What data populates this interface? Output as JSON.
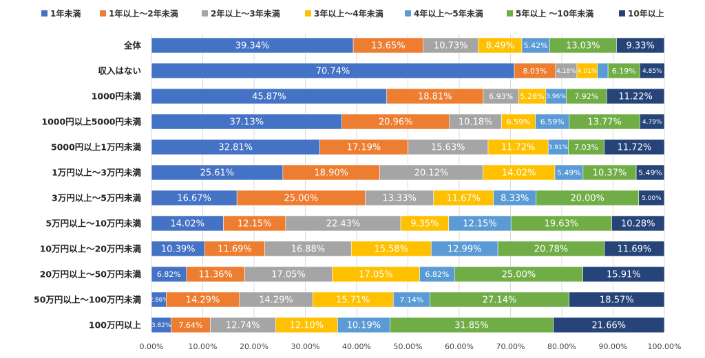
{
  "chart_data": {
    "type": "bar",
    "orientation": "horizontal-stacked-100",
    "categories": [
      "全体",
      "収入はない",
      "1000円未満",
      "1000円以上5000円未満",
      "5000円以上1万円未満",
      "1万円以上～3万円未満",
      "3万円以上～5万円未満",
      "5万円以上～10万円未満",
      "10万円以上～20万円未満",
      "20万円以上～50万円未満",
      "50万円以上～100万円未満",
      "100万円以上"
    ],
    "series": [
      {
        "name": "1年未満",
        "color": "#4472C4",
        "values": [
          39.34,
          70.74,
          45.87,
          37.13,
          32.81,
          25.61,
          16.67,
          14.02,
          10.39,
          6.82,
          2.86,
          3.82
        ],
        "labels": [
          "39.34%",
          "70.74%",
          "45.87%",
          "37.13%",
          "32.81%",
          "25.61%",
          "16.67%",
          "14.02%",
          "10.39%",
          "6.82%",
          "2.86%",
          "3.82%"
        ]
      },
      {
        "name": "1年以上～2年未満",
        "color": "#ED7D31",
        "values": [
          13.65,
          8.03,
          18.81,
          20.96,
          17.19,
          18.9,
          25.0,
          12.15,
          11.69,
          11.36,
          14.29,
          7.64
        ],
        "labels": [
          "13.65%",
          "8.03%",
          "18.81%",
          "20.96%",
          "17.19%",
          "18.90%",
          "25.00%",
          "12.15%",
          "11.69%",
          "11.36%",
          "14.29%",
          "7.64%"
        ]
      },
      {
        "name": "2年以上～3年未満",
        "color": "#A5A5A5",
        "values": [
          10.73,
          4.18,
          6.93,
          10.18,
          15.63,
          20.12,
          13.33,
          22.43,
          16.88,
          17.05,
          14.29,
          12.74
        ],
        "labels": [
          "10.73%",
          "4.18%",
          "6.93%",
          "10.18%",
          "15.63%",
          "20.12%",
          "13.33%",
          "22.43%",
          "16.88%",
          "17.05%",
          "14.29%",
          "12.74%"
        ]
      },
      {
        "name": "3年以上～4年未満",
        "color": "#FFC000",
        "values": [
          8.49,
          4.01,
          5.28,
          6.59,
          11.72,
          14.02,
          11.67,
          9.35,
          15.58,
          17.05,
          15.71,
          12.1
        ],
        "labels": [
          "8.49%",
          "4.01%",
          "5.28%",
          "6.59%",
          "11.72%",
          "14.02%",
          "11.67%",
          "9.35%",
          "15.58%",
          "17.05%",
          "15.71%",
          "12.10%"
        ]
      },
      {
        "name": "4年以上～5年未満",
        "color": "#5B9BD5",
        "values": [
          5.42,
          2.05,
          3.96,
          6.59,
          3.91,
          5.49,
          8.33,
          12.15,
          12.99,
          6.82,
          7.14,
          10.19
        ],
        "labels": [
          "5.42%",
          "",
          "3.96%",
          "6.59%",
          "3.91%",
          "5.49%",
          "8.33%",
          "12.15%",
          "12.99%",
          "6.82%",
          "7.14%",
          "10.19%"
        ]
      },
      {
        "name": "5年以上 ～10年未満",
        "color": "#70AD47",
        "values": [
          13.03,
          6.19,
          7.92,
          13.77,
          7.03,
          10.37,
          20.0,
          19.63,
          20.78,
          25.0,
          27.14,
          31.85
        ],
        "labels": [
          "13.03%",
          "6.19%",
          "7.92%",
          "13.77%",
          "7.03%",
          "10.37%",
          "20.00%",
          "19.63%",
          "20.78%",
          "25.00%",
          "27.14%",
          "31.85%"
        ]
      },
      {
        "name": "10年以上",
        "color": "#264478",
        "values": [
          9.33,
          4.85,
          11.22,
          4.79,
          11.72,
          5.49,
          5.0,
          10.28,
          11.69,
          15.91,
          18.57,
          21.66
        ],
        "labels": [
          "9.33%",
          "4.85%",
          "11.22%",
          "4.79%",
          "11.72%",
          "5.49%",
          "5.00%",
          "10.28%",
          "11.69%",
          "15.91%",
          "18.57%",
          "21.66%"
        ]
      }
    ],
    "xticks": [
      "0.00%",
      "10.00%",
      "20.00%",
      "30.00%",
      "40.00%",
      "50.00%",
      "60.00%",
      "70.00%",
      "80.00%",
      "90.00%",
      "100.00%"
    ],
    "xlim": [
      0,
      100
    ],
    "grid": true,
    "legend_position": "top"
  }
}
